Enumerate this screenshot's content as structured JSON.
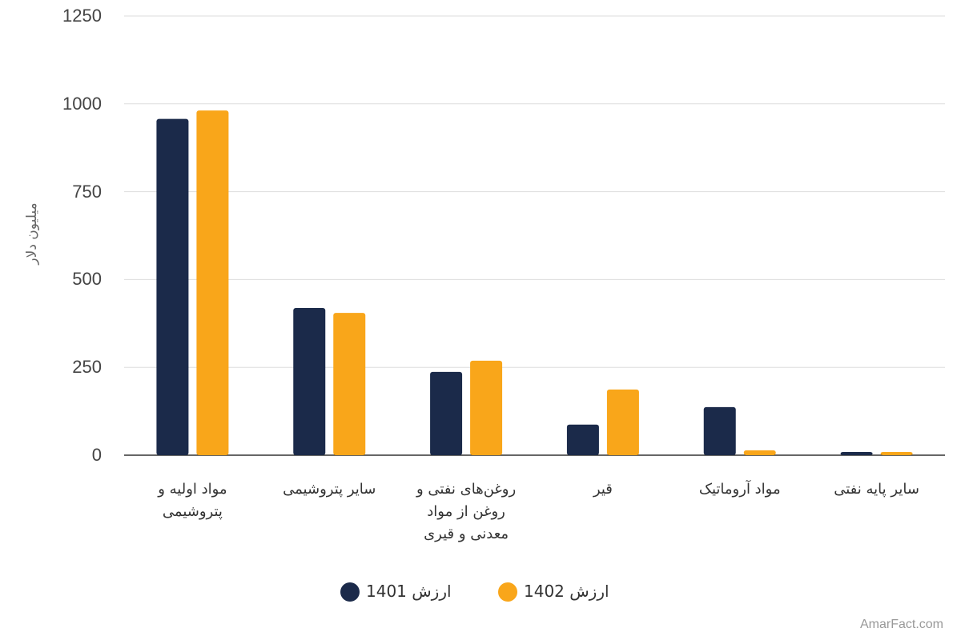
{
  "chart_data": {
    "type": "bar",
    "y_label": "میلیون دلار",
    "categories": [
      "مواد اولیه و پتروشیمی",
      "سایر پتروشیمی",
      "روغن‌های نفتی و روغن از مواد معدنی و قیری",
      "قیر",
      "مواد آروماتیک",
      "سایر پایه نفتی"
    ],
    "series": [
      {
        "name": "ارزش 1401",
        "color": "#1b2a4a",
        "values": [
          957,
          419,
          237,
          87,
          137,
          9
        ]
      },
      {
        "name": "ارزش 1402",
        "color": "#f9a61a",
        "values": [
          981,
          405,
          269,
          187,
          14,
          9
        ]
      }
    ],
    "ylim": [
      0,
      1250
    ],
    "yticks": [
      0,
      250,
      500,
      750,
      1000,
      1250
    ],
    "grid": true,
    "legend": "bottom",
    "watermark": "AmarFact.com"
  }
}
